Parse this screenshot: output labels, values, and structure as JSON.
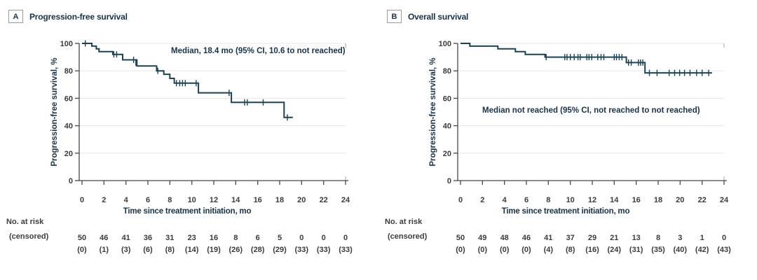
{
  "colors": {
    "curve": "#1a4456",
    "grid": "#e8e8e8",
    "axis": "#474747",
    "frame_cap": "#b5b5b5",
    "label_text": "#16334c",
    "tick_text": "#3b3b3b"
  },
  "panels": [
    {
      "letter": "A",
      "title": "Progression-free survival",
      "y_axis_label": "Progression-free survival, %",
      "x_axis_label": "Time since treatment initiation, mo",
      "annotation": "Median, 18.4 mo (95% CI, 10.6 to not reached)",
      "risk_label_line1": "No. at risk",
      "risk_label_line2": "(censored)"
    },
    {
      "letter": "B",
      "title": "Overall survival",
      "y_axis_label": "Progression-free survival, %",
      "x_axis_label": "Time since treatment initiation, mo",
      "annotation": "Median not reached (95% CI, not reached to not reached)",
      "risk_label_line1": "No. at risk",
      "risk_label_line2": "(censored)"
    }
  ],
  "chart_data": [
    {
      "type": "line",
      "subtype": "kaplan-meier-step",
      "title": "Progression-free survival",
      "xlabel": "Time since treatment initiation, mo",
      "ylabel": "Progression-free survival, %",
      "xlim": [
        0,
        24
      ],
      "ylim": [
        0,
        100
      ],
      "x_ticks": [
        0,
        2,
        4,
        6,
        8,
        10,
        12,
        14,
        16,
        18,
        20,
        22,
        24
      ],
      "y_ticks": [
        0,
        20,
        40,
        60,
        80,
        100
      ],
      "grid": "horizontal",
      "median_text": "Median, 18.4 mo (95% CI, 10.6 to not reached)",
      "start": [
        0,
        100
      ],
      "steps": [
        [
          0.9,
          98
        ],
        [
          1.3,
          96
        ],
        [
          1.55,
          94
        ],
        [
          2.8,
          92
        ],
        [
          3.7,
          88
        ],
        [
          5.0,
          83.5
        ],
        [
          6.8,
          80
        ],
        [
          7.45,
          77.5
        ],
        [
          8.0,
          74.5
        ],
        [
          8.4,
          71
        ],
        [
          10.6,
          64
        ],
        [
          13.6,
          57
        ],
        [
          18.4,
          46
        ]
      ],
      "curve_end_x": 19.2,
      "censor_marks": [
        [
          0.3,
          100
        ],
        [
          2.9,
          92
        ],
        [
          3.15,
          92
        ],
        [
          4.7,
          88
        ],
        [
          4.9,
          86
        ],
        [
          6.9,
          80
        ],
        [
          8.6,
          71
        ],
        [
          8.9,
          71
        ],
        [
          9.15,
          71
        ],
        [
          9.4,
          71
        ],
        [
          10.4,
          71
        ],
        [
          13.4,
          64
        ],
        [
          14.8,
          57
        ],
        [
          15.05,
          57
        ],
        [
          16.5,
          57
        ],
        [
          18.7,
          46
        ]
      ],
      "at_risk": {
        "times": [
          0,
          2,
          4,
          6,
          8,
          10,
          12,
          14,
          16,
          18,
          20,
          22,
          24
        ],
        "n": [
          50,
          46,
          41,
          36,
          31,
          23,
          16,
          8,
          6,
          5,
          0,
          0,
          0
        ],
        "censored": [
          "(0)",
          "(1)",
          "(3)",
          "(6)",
          "(8)",
          "(14)",
          "(19)",
          "(26)",
          "(28)",
          "(29)",
          "(33)",
          "(33)",
          "(33)"
        ]
      }
    },
    {
      "type": "line",
      "subtype": "kaplan-meier-step",
      "title": "Overall survival",
      "xlabel": "Time since treatment initiation, mo",
      "ylabel": "Progression-free survival, %",
      "xlim": [
        0,
        24
      ],
      "ylim": [
        0,
        100
      ],
      "x_ticks": [
        0,
        2,
        4,
        6,
        8,
        10,
        12,
        14,
        16,
        18,
        20,
        22,
        24
      ],
      "y_ticks": [
        0,
        20,
        40,
        60,
        80,
        100
      ],
      "grid": "horizontal",
      "median_text": "Median not reached (95% CI, not reached to not reached)",
      "start": [
        0,
        100
      ],
      "steps": [
        [
          0.85,
          98
        ],
        [
          3.4,
          96
        ],
        [
          5.0,
          94
        ],
        [
          5.9,
          92
        ],
        [
          7.7,
          90
        ],
        [
          15.1,
          86
        ],
        [
          16.8,
          78.5
        ]
      ],
      "curve_end_x": 22.9,
      "censor_marks": [
        [
          7.8,
          90
        ],
        [
          9.5,
          90
        ],
        [
          9.7,
          90
        ],
        [
          10.0,
          90
        ],
        [
          10.35,
          90
        ],
        [
          10.7,
          90
        ],
        [
          10.9,
          90
        ],
        [
          11.5,
          90
        ],
        [
          11.7,
          90
        ],
        [
          11.95,
          90
        ],
        [
          12.5,
          90
        ],
        [
          12.8,
          90
        ],
        [
          13.05,
          90
        ],
        [
          14.0,
          90
        ],
        [
          14.2,
          90
        ],
        [
          14.45,
          90
        ],
        [
          14.7,
          90
        ],
        [
          15.3,
          86
        ],
        [
          15.55,
          86
        ],
        [
          16.2,
          86
        ],
        [
          16.4,
          86
        ],
        [
          16.6,
          86
        ],
        [
          17.2,
          78.5
        ],
        [
          17.9,
          78.5
        ],
        [
          19.0,
          78.5
        ],
        [
          19.5,
          78.5
        ],
        [
          19.95,
          78.5
        ],
        [
          20.4,
          78.5
        ],
        [
          20.9,
          78.5
        ],
        [
          21.5,
          78.5
        ],
        [
          22.0,
          78.5
        ],
        [
          22.6,
          78.5
        ]
      ],
      "at_risk": {
        "times": [
          0,
          2,
          4,
          6,
          8,
          10,
          12,
          14,
          16,
          18,
          20,
          22,
          24
        ],
        "n": [
          50,
          49,
          48,
          46,
          41,
          37,
          29,
          21,
          13,
          8,
          3,
          1,
          0
        ],
        "censored": [
          "(0)",
          "(0)",
          "(0)",
          "(0)",
          "(4)",
          "(8)",
          "(16)",
          "(24)",
          "(31)",
          "(35)",
          "(40)",
          "(42)",
          "(43)"
        ]
      }
    }
  ]
}
